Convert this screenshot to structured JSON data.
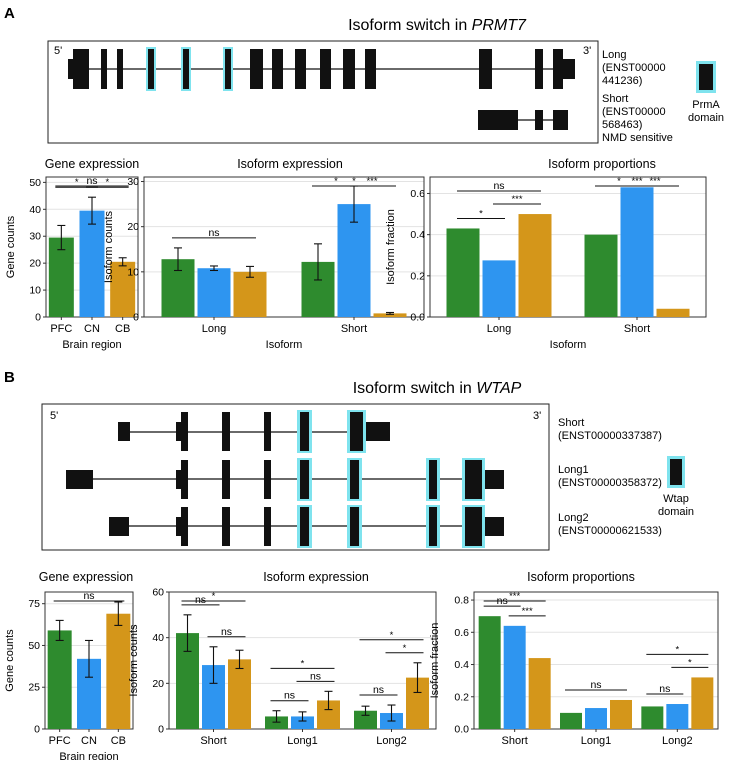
{
  "colors": {
    "PFC": "#2e8b2e",
    "CN": "#2e95f0",
    "CB": "#d4961a",
    "domain": "#7fe3ee",
    "exon": "#111111",
    "grid": "#e3e3e3"
  },
  "panels": [
    {
      "letter": "A",
      "title_prefix": "Isoform switch in ",
      "gene": "PRMT7",
      "five_prime": "5'",
      "three_prime": "3'",
      "isoforms": [
        {
          "name_lines": [
            "Long",
            "(ENST00000",
            "441236)"
          ]
        },
        {
          "name_lines": [
            "Short",
            "(ENST00000",
            "568463)",
            "NMD sensitive"
          ]
        }
      ],
      "domain_lines": [
        "PrmA",
        "domain"
      ]
    },
    {
      "letter": "B",
      "title_prefix": "Isoform switch in ",
      "gene": "WTAP",
      "five_prime": "5'",
      "three_prime": "3'",
      "isoforms": [
        {
          "name_lines": [
            "Short",
            "(ENST00000337387)"
          ]
        },
        {
          "name_lines": [
            "Long1",
            "(ENST00000358372)"
          ]
        },
        {
          "name_lines": [
            "Long2",
            "(ENST00000621533)"
          ]
        }
      ],
      "domain_lines": [
        "Wtap",
        "domain"
      ]
    }
  ],
  "chart_data": [
    {
      "id": "A1",
      "type": "bar",
      "title": "Gene expression",
      "xlabel": "Brain region",
      "ylabel": "Gene counts",
      "categories": [
        "PFC",
        "CN",
        "CB"
      ],
      "values": [
        29.5,
        39.5,
        20.5
      ],
      "errors": [
        4.5,
        5,
        1.5
      ],
      "ylim": [
        0,
        52
      ],
      "yticks": [
        0,
        10,
        20,
        30,
        40,
        50
      ],
      "yticklabels": [
        "0",
        "10",
        "20",
        "30",
        "40",
        "50"
      ],
      "sig": [
        {
          "from": 0,
          "to": 2,
          "label": "ns"
        },
        {
          "from": 0,
          "to": 1,
          "label": "*"
        },
        {
          "from": 1,
          "to": 2,
          "label": "*"
        }
      ]
    },
    {
      "id": "A2",
      "type": "bar",
      "title": "Isoform expression",
      "xlabel": "Isoform",
      "ylabel": "Isoform counts",
      "groups": [
        "Long",
        "Short"
      ],
      "series": [
        {
          "name": "PFC",
          "values": [
            12.8,
            12.2
          ],
          "errors": [
            2.5,
            4
          ]
        },
        {
          "name": "CN",
          "values": [
            10.8,
            25
          ],
          "errors": [
            0.5,
            4
          ]
        },
        {
          "name": "CB",
          "values": [
            10,
            0.8
          ],
          "errors": [
            1.2,
            0.2
          ]
        }
      ],
      "ylim": [
        0,
        31
      ],
      "yticks": [
        0,
        10,
        20,
        30
      ],
      "yticklabels": [
        "0",
        "10",
        "20",
        "30"
      ],
      "sig": [
        {
          "group": 0,
          "from": 0,
          "to": 2,
          "label": "ns"
        },
        {
          "group": 1,
          "from": 0,
          "to": 2,
          "label": "*"
        },
        {
          "group": 1,
          "from": 0,
          "to": 1,
          "label": "*"
        },
        {
          "group": 1,
          "from": 1,
          "to": 2,
          "label": "***"
        }
      ]
    },
    {
      "id": "A3",
      "type": "bar",
      "title": "Isoform proportions",
      "xlabel": "Isoform",
      "ylabel": "Isoform fraction",
      "groups": [
        "Long",
        "Short"
      ],
      "series": [
        {
          "name": "PFC",
          "values": [
            0.43,
            0.4
          ]
        },
        {
          "name": "CN",
          "values": [
            0.275,
            0.63
          ]
        },
        {
          "name": "CB",
          "values": [
            0.5,
            0.04
          ]
        }
      ],
      "ylim": [
        0,
        0.68
      ],
      "yticks": [
        0,
        0.2,
        0.4,
        0.6
      ],
      "yticklabels": [
        "0.0",
        "0.2",
        "0.4",
        "0.6"
      ],
      "sig": [
        {
          "group": 0,
          "from": 0,
          "to": 2,
          "label": "ns"
        },
        {
          "group": 0,
          "from": 0,
          "to": 1,
          "label": "*"
        },
        {
          "group": 0,
          "from": 1,
          "to": 2,
          "label": "***"
        },
        {
          "group": 1,
          "from": 0,
          "to": 2,
          "label": "***"
        },
        {
          "group": 1,
          "from": 0,
          "to": 1,
          "label": "*"
        },
        {
          "group": 1,
          "from": 1,
          "to": 2,
          "label": "***"
        }
      ]
    },
    {
      "id": "B1",
      "type": "bar",
      "title": "Gene expression",
      "xlabel": "Brain region",
      "ylabel": "Gene counts",
      "categories": [
        "PFC",
        "CN",
        "CB"
      ],
      "values": [
        59,
        42,
        69
      ],
      "errors": [
        6,
        11,
        7
      ],
      "ylim": [
        0,
        82
      ],
      "yticks": [
        0,
        25,
        50,
        75
      ],
      "yticklabels": [
        "0",
        "25",
        "50",
        "75"
      ],
      "sig": [
        {
          "from": 0,
          "to": 2,
          "label": "ns"
        }
      ]
    },
    {
      "id": "B2",
      "type": "bar",
      "title": "Isoform expression",
      "xlabel": "",
      "ylabel": "Isoform counts",
      "groups": [
        "Short",
        "Long1",
        "Long2"
      ],
      "series": [
        {
          "name": "PFC",
          "values": [
            42,
            5.5,
            8
          ],
          "errors": [
            8,
            2.5,
            2
          ]
        },
        {
          "name": "CN",
          "values": [
            28,
            5.5,
            7
          ],
          "errors": [
            8,
            2,
            3.5
          ]
        },
        {
          "name": "CB",
          "values": [
            30.5,
            12.5,
            22.5
          ],
          "errors": [
            4,
            4,
            6.5
          ]
        }
      ],
      "ylim": [
        0,
        60
      ],
      "yticks": [
        0,
        20,
        40,
        60
      ],
      "yticklabels": [
        "0",
        "20",
        "40",
        "60"
      ],
      "sig": [
        {
          "group": 0,
          "from": 0,
          "to": 1,
          "label": "ns"
        },
        {
          "group": 0,
          "from": 1,
          "to": 2,
          "label": "ns"
        },
        {
          "group": 0,
          "from": 0,
          "to": 2,
          "label": "*"
        },
        {
          "group": 1,
          "from": 0,
          "to": 1,
          "label": "ns"
        },
        {
          "group": 1,
          "from": 1,
          "to": 2,
          "label": "ns"
        },
        {
          "group": 1,
          "from": 0,
          "to": 2,
          "label": "*"
        },
        {
          "group": 2,
          "from": 0,
          "to": 1,
          "label": "ns"
        },
        {
          "group": 2,
          "from": 1,
          "to": 2,
          "label": "*"
        },
        {
          "group": 2,
          "from": 0,
          "to": 2,
          "label": "*"
        }
      ]
    },
    {
      "id": "B3",
      "type": "bar",
      "title": "Isoform proportions",
      "xlabel": "",
      "ylabel": "Isoform fraction",
      "groups": [
        "Short",
        "Long1",
        "Long2"
      ],
      "series": [
        {
          "name": "PFC",
          "values": [
            0.7,
            0.1,
            0.14
          ]
        },
        {
          "name": "CN",
          "values": [
            0.64,
            0.13,
            0.155
          ]
        },
        {
          "name": "CB",
          "values": [
            0.44,
            0.18,
            0.32
          ]
        }
      ],
      "ylim": [
        0,
        0.85
      ],
      "yticks": [
        0,
        0.2,
        0.4,
        0.6,
        0.8
      ],
      "yticklabels": [
        "0.0",
        "0.2",
        "0.4",
        "0.6",
        "0.8"
      ],
      "sig": [
        {
          "group": 0,
          "from": 0,
          "to": 1,
          "label": "ns"
        },
        {
          "group": 0,
          "from": 1,
          "to": 2,
          "label": "***"
        },
        {
          "group": 0,
          "from": 0,
          "to": 2,
          "label": "***"
        },
        {
          "group": 1,
          "from": 0,
          "to": 2,
          "label": "ns"
        },
        {
          "group": 2,
          "from": 0,
          "to": 1,
          "label": "ns"
        },
        {
          "group": 2,
          "from": 1,
          "to": 2,
          "label": "*"
        },
        {
          "group": 2,
          "from": 0,
          "to": 2,
          "label": "*"
        }
      ]
    }
  ]
}
